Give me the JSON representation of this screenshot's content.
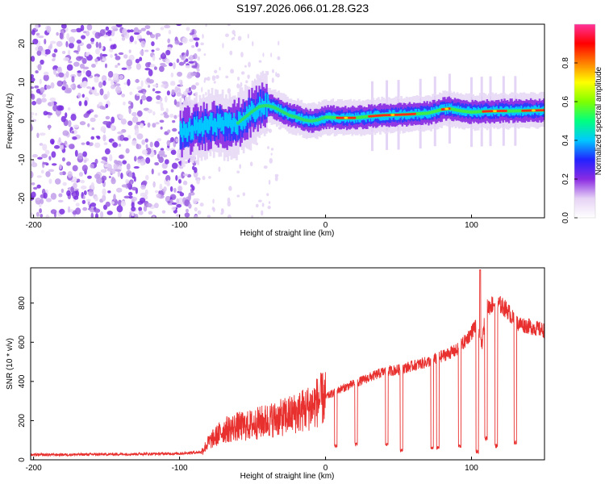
{
  "title": "S197.2026.066.01.28.G23",
  "chart_data": [
    {
      "type": "heatmap",
      "xlabel": "Height of straight line (km)",
      "ylabel": "Frequency (Hz)",
      "xlim": [
        -202,
        150
      ],
      "ylim": [
        -25,
        25
      ],
      "xticks": [
        -200,
        -100,
        0,
        100
      ],
      "xtick_labels": [
        "-200",
        "-100",
        "0",
        "100"
      ],
      "yticks": [
        -20,
        -10,
        0,
        10,
        20
      ],
      "ytick_labels": [
        "-20",
        "-10",
        "0",
        "10",
        "20"
      ],
      "ridge": {
        "x": [
          -100,
          -95,
          -90,
          -85,
          -80,
          -75,
          -70,
          -65,
          -60,
          -55,
          -50,
          -45,
          -40,
          -35,
          -30,
          -25,
          -20,
          -15,
          -10,
          -5,
          0,
          10,
          20,
          30,
          40,
          50,
          60,
          70,
          75,
          80,
          85,
          90,
          95,
          100,
          110,
          120,
          130,
          140,
          150
        ],
        "y": [
          -3,
          -2.5,
          -2,
          -1.5,
          -1,
          -0.5,
          -1,
          -1,
          -0.5,
          1,
          2.5,
          3.8,
          4,
          3.5,
          2.5,
          1.5,
          1,
          0.3,
          0,
          0.3,
          1,
          0.8,
          0.8,
          1.2,
          1.5,
          1.6,
          1.8,
          2,
          2.5,
          3,
          3.2,
          2.8,
          2.5,
          2.3,
          2.5,
          2.6,
          2.6,
          2.7,
          2.8
        ]
      },
      "spikes_x": [
        32,
        42,
        50,
        65,
        75,
        85,
        100,
        107,
        113,
        122,
        130
      ],
      "colorbar": {
        "label": "Normalized spectral amplitude",
        "range": [
          0,
          1
        ],
        "ticks": [
          0.0,
          0.2,
          0.4,
          0.6,
          0.8
        ],
        "tick_labels": [
          "0.0",
          "0.2",
          "0.4",
          "0.6",
          "0.8"
        ],
        "colors": [
          "#ffffff",
          "#e6d2f5",
          "#8a2be2",
          "#2222ff",
          "#00c8ff",
          "#00ff80",
          "#80ff00",
          "#ffff00",
          "#ff8000",
          "#ff0000",
          "#ff3399"
        ]
      }
    },
    {
      "type": "line",
      "xlabel": "Height of straight line (km)",
      "ylabel": "SNR (10 * v/v)",
      "xlim": [
        -202,
        150
      ],
      "ylim": [
        0,
        980
      ],
      "xticks": [
        -200,
        -100,
        0,
        100
      ],
      "xtick_labels": [
        "-200",
        "-100",
        "0",
        "100"
      ],
      "yticks": [
        0,
        200,
        400,
        600,
        800
      ],
      "ytick_labels": [
        "0",
        "200",
        "400",
        "600",
        "800"
      ],
      "series": [
        {
          "name": "SNR",
          "color": "#e8302e",
          "x": [
            -202,
            -150,
            -100,
            -85,
            -80,
            -70,
            -60,
            -55,
            -50,
            -40,
            -30,
            -20,
            -10,
            -5,
            0,
            10,
            20,
            30,
            40,
            50,
            60,
            70,
            80,
            90,
            95,
            100,
            103,
            105,
            107,
            110,
            115,
            120,
            125,
            130,
            140,
            150
          ],
          "y": [
            25,
            28,
            32,
            40,
            90,
            150,
            170,
            170,
            180,
            200,
            215,
            240,
            270,
            300,
            320,
            360,
            390,
            420,
            450,
            460,
            480,
            500,
            530,
            560,
            600,
            650,
            690,
            660,
            580,
            770,
            800,
            790,
            760,
            700,
            680,
            660
          ],
          "dips": [
            [
              7,
              60
            ],
            [
              21,
              70
            ],
            [
              42,
              70
            ],
            [
              52,
              40
            ],
            [
              73,
              50
            ],
            [
              77,
              50
            ],
            [
              92,
              60
            ],
            [
              104,
              30
            ],
            [
              110,
              100
            ],
            [
              117,
              60
            ],
            [
              130,
              80
            ]
          ],
          "peak": [
            106,
            970
          ]
        }
      ]
    }
  ]
}
